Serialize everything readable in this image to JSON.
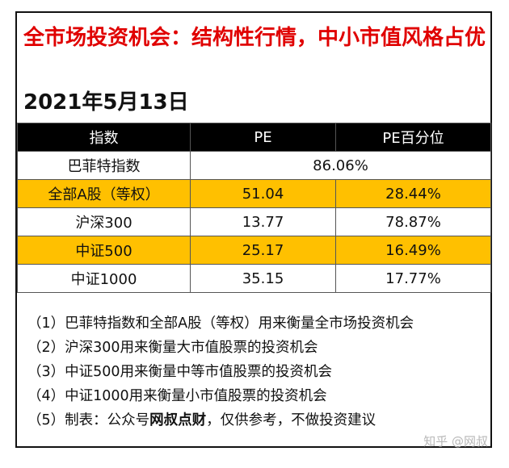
{
  "title": "全市场投资机会：结构性行情，中小市值风格占优",
  "date": "2021年5月13日",
  "table": {
    "headers": [
      "指数",
      "PE",
      "PE百分位"
    ],
    "buffett_row": {
      "name": "巴菲特指数",
      "value": "86.06%"
    },
    "rows": [
      {
        "name": "全部A股（等权）",
        "pe": "51.04",
        "pct": "28.44%",
        "highlight": true
      },
      {
        "name": "沪深300",
        "pe": "13.77",
        "pct": "78.87%",
        "highlight": false
      },
      {
        "name": "中证500",
        "pe": "25.17",
        "pct": "16.49%",
        "highlight": true
      },
      {
        "name": "中证1000",
        "pe": "35.15",
        "pct": "17.77%",
        "highlight": false
      }
    ]
  },
  "notes": [
    "（1）巴菲特指数和全部A股（等权）用来衡量全市场投资机会",
    "（2）沪深300用来衡量大市值股票的投资机会",
    "（3）中证500用来衡量中等市值股票的投资机会",
    "（4）中证1000用来衡量小市值股票的投资机会"
  ],
  "note5": {
    "prefix": "（5）制表：公众号",
    "bold": "网叔点财",
    "suffix": "，仅供参考，不做投资建议"
  },
  "watermark": "知乎 @网叔",
  "colors": {
    "title": "#e00000",
    "highlight": "#ffc000",
    "header_bg": "#000000"
  }
}
